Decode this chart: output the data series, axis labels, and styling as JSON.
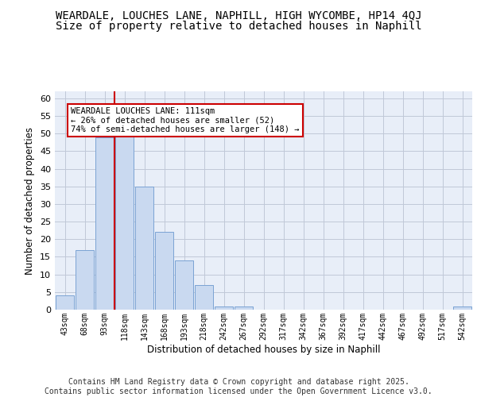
{
  "title1": "WEARDALE, LOUCHES LANE, NAPHILL, HIGH WYCOMBE, HP14 4QJ",
  "title2": "Size of property relative to detached houses in Naphill",
  "xlabel": "Distribution of detached houses by size in Naphill",
  "ylabel": "Number of detached properties",
  "bins": [
    "43sqm",
    "68sqm",
    "93sqm",
    "118sqm",
    "143sqm",
    "168sqm",
    "193sqm",
    "218sqm",
    "242sqm",
    "267sqm",
    "292sqm",
    "317sqm",
    "342sqm",
    "367sqm",
    "392sqm",
    "417sqm",
    "442sqm",
    "467sqm",
    "492sqm",
    "517sqm",
    "542sqm"
  ],
  "values": [
    4,
    17,
    49,
    50,
    35,
    22,
    14,
    7,
    1,
    1,
    0,
    0,
    0,
    0,
    0,
    0,
    0,
    0,
    0,
    0,
    1
  ],
  "bar_color": "#c9d9f0",
  "bar_edge_color": "#7ba3d4",
  "vline_color": "#cc0000",
  "annotation_text": "WEARDALE LOUCHES LANE: 111sqm\n← 26% of detached houses are smaller (52)\n74% of semi-detached houses are larger (148) →",
  "annotation_box_color": "#ffffff",
  "annotation_box_edgecolor": "#cc0000",
  "ylim": [
    0,
    62
  ],
  "yticks": [
    0,
    5,
    10,
    15,
    20,
    25,
    30,
    35,
    40,
    45,
    50,
    55,
    60
  ],
  "grid_color": "#c0c8d8",
  "bg_color": "#e8eef8",
  "footer": "Contains HM Land Registry data © Crown copyright and database right 2025.\nContains public sector information licensed under the Open Government Licence v3.0.",
  "title_fontsize": 10,
  "subtitle_fontsize": 10,
  "footer_fontsize": 7
}
